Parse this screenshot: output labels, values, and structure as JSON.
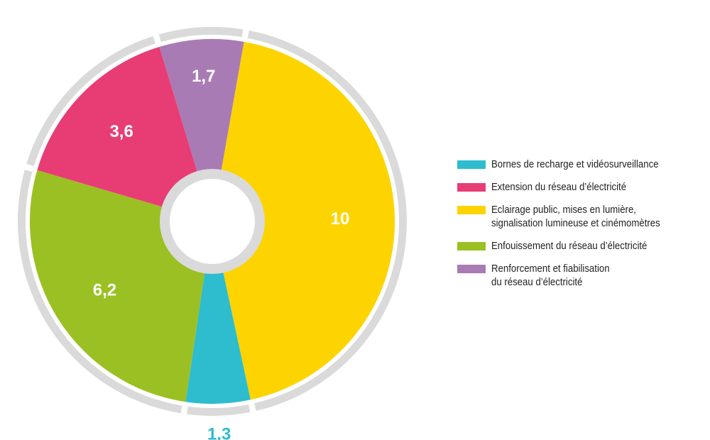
{
  "chart_data": {
    "type": "donut",
    "title": "",
    "series": [
      {
        "name": "Bornes de recharge et vidéosurveillance",
        "value": 1.3,
        "label": "1,3",
        "color": "#2ebccf"
      },
      {
        "name": "Extension du réseau d’électricité",
        "value": 3.6,
        "label": "3,6",
        "color": "#e83c75"
      },
      {
        "name": "Eclairage public, mises en lumière,\nsignalisation lumineuse et cinémomètres",
        "value": 10,
        "label": "10",
        "color": "#fdd400"
      },
      {
        "name": "Enfouissement du réseau d’électricité",
        "value": 6.2,
        "label": "6,2",
        "color": "#9bc023"
      },
      {
        "name": "Renforcement et fiabilisation\ndu réseau d’électricité",
        "value": 1.7,
        "label": "1,7",
        "color": "#a97bb4"
      }
    ],
    "slice_order_clockwise_from_top": [
      "Eclairage public, mises en lumière,\nsignalisation lumineuse et cinémomètres",
      "Bornes de recharge et vidéosurveillance",
      "Enfouissement du réseau d’électricité",
      "Extension du réseau d’électricité",
      "Renforcement et fiabilisation\ndu réseau d’électricité"
    ],
    "outer_ring_color": "#dadada",
    "legend_placement": "right"
  },
  "legend": {
    "items": [
      {
        "label": "Bornes de recharge et vidéosurveillance",
        "color": "#2ebccf"
      },
      {
        "label": "Extension du réseau d’électricité",
        "color": "#e83c75"
      },
      {
        "label": "Eclairage public, mises en lumière,\nsignalisation lumineuse et cinémomètres",
        "color": "#fdd400"
      },
      {
        "label": "Enfouissement du réseau d’électricité",
        "color": "#9bc023"
      },
      {
        "label": "Renforcement et fiabilisation\ndu réseau d’électricité",
        "color": "#a97bb4"
      }
    ]
  }
}
